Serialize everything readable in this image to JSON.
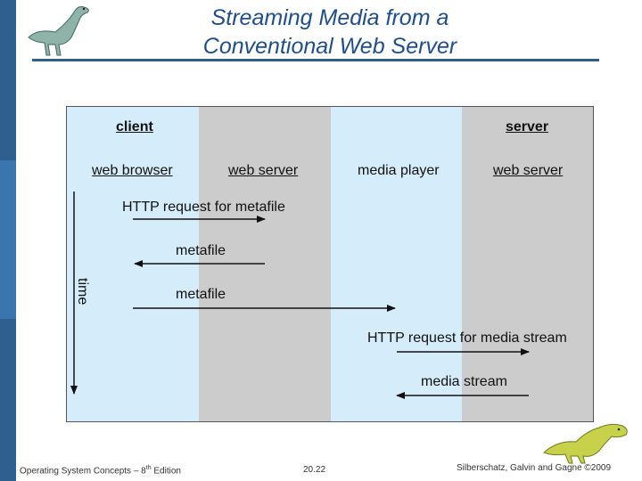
{
  "slide": {
    "title_line1": "Streaming Media from a",
    "title_line2": "Conventional Web Server"
  },
  "diagram": {
    "client_label": "client",
    "server_label": "server",
    "columns": {
      "web_browser": "web browser",
      "web_server_1": "web server",
      "media_player": "media player",
      "web_server_2": "web server"
    },
    "time_label": "time",
    "messages": {
      "http_request_metafile": "HTTP request for metafile",
      "metafile_1": "metafile",
      "metafile_2": "metafile",
      "http_request_media": "HTTP request for media stream",
      "media_stream": "media stream"
    },
    "colors": {
      "light_blue": "#d5ecfa",
      "gray": "#cccccc"
    }
  },
  "footer": {
    "book_prefix": "Operating System Concepts – 8",
    "book_sup": "th",
    "book_suffix": " Edition",
    "page": "20.22",
    "copyright": "Silberschatz, Galvin and Gagne ©2009"
  }
}
